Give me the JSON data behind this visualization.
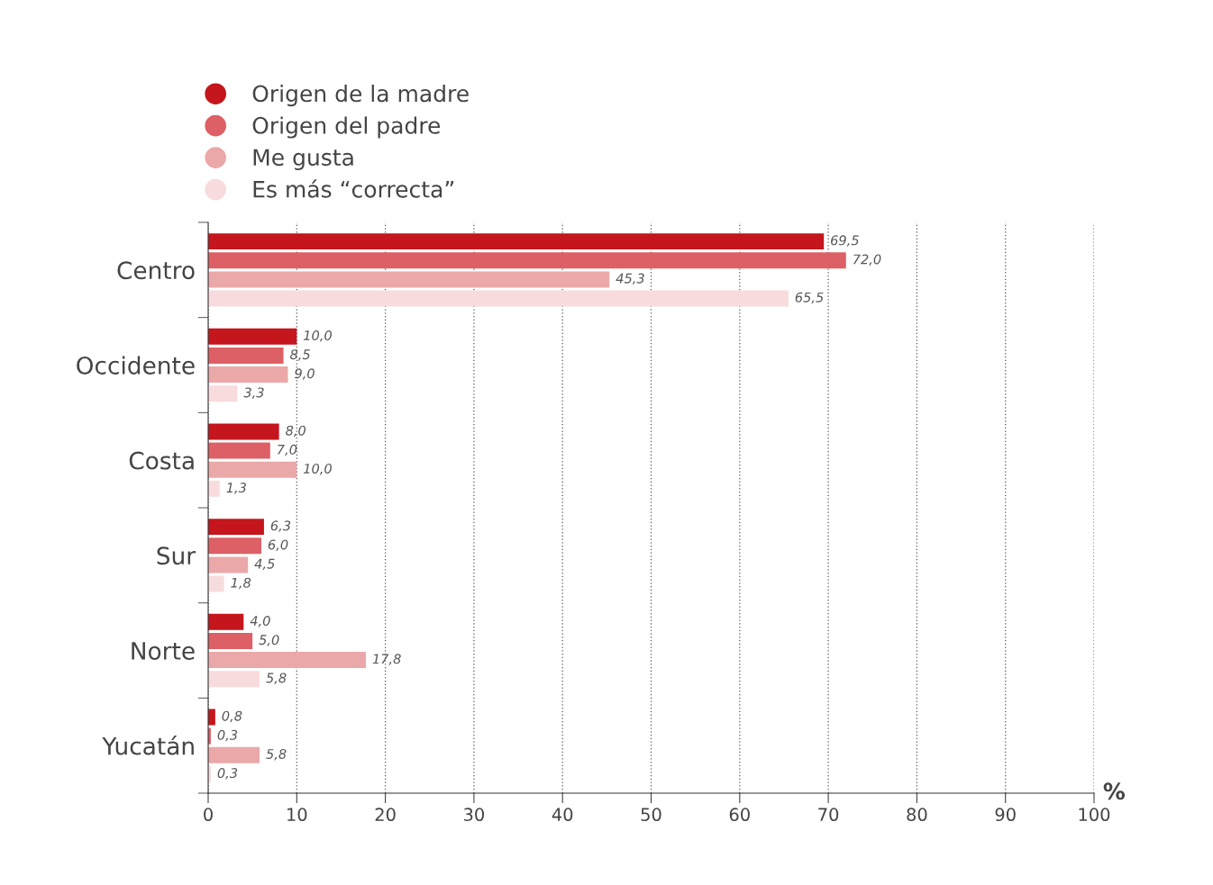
{
  "chart_data": {
    "type": "bar",
    "orientation": "horizontal",
    "xlabel": "%",
    "categories": [
      "Centro",
      "Occidente",
      "Costa",
      "Sur",
      "Norte",
      "Yucatán"
    ],
    "series": [
      {
        "name": "Origen de la madre",
        "color": "#c4161c",
        "values": [
          69.5,
          10.0,
          8.0,
          6.3,
          4.0,
          0.8
        ],
        "value_labels": [
          "69,5",
          "10,0",
          "8,0",
          "6,3",
          "4,0",
          "0,8"
        ]
      },
      {
        "name": "Origen del padre",
        "color": "#dc6065",
        "values": [
          72.0,
          8.5,
          7.0,
          6.0,
          5.0,
          0.3
        ],
        "value_labels": [
          "72,0",
          "8,5",
          "7,0",
          "6,0",
          "5,0",
          "0,3"
        ]
      },
      {
        "name": "Me gusta",
        "color": "#eba8a9",
        "values": [
          45.3,
          9.0,
          10.0,
          4.5,
          17.8,
          5.8
        ],
        "value_labels": [
          "45,3",
          "9,0",
          "10,0",
          "4,5",
          "17,8",
          "5,8"
        ]
      },
      {
        "name": "Es más “correcta”",
        "color": "#f8dcdd",
        "values": [
          65.5,
          3.3,
          1.3,
          1.8,
          5.8,
          0.3
        ],
        "value_labels": [
          "65,5",
          "3,3",
          "1,3",
          "1,8",
          "5,8",
          "0,3"
        ]
      }
    ],
    "xlim": [
      0,
      100
    ],
    "xticks": [
      0,
      10,
      20,
      30,
      40,
      50,
      60,
      70,
      80,
      90,
      100
    ],
    "grid": "x",
    "legend": "top left",
    "marker": "circle"
  }
}
